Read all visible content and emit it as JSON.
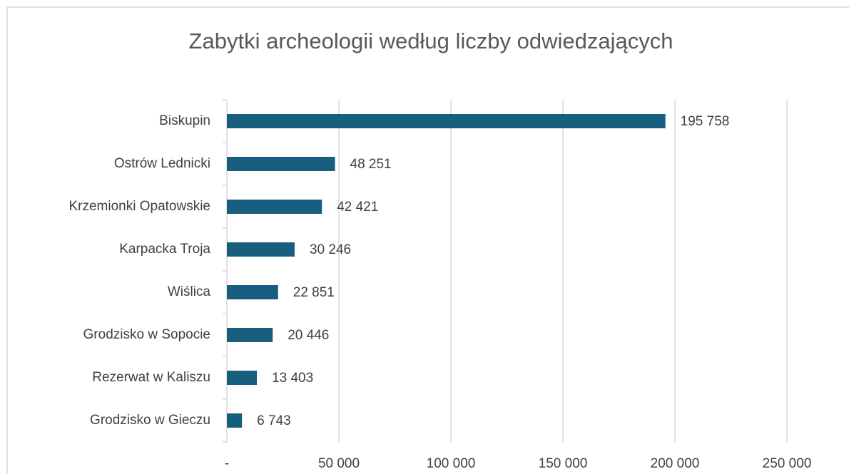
{
  "chart_data": {
    "type": "bar",
    "orientation": "horizontal",
    "title": "Zabytki archeologii według liczby odwiedzających",
    "categories": [
      "Biskupin",
      "Ostrów Lednicki",
      "Krzemionki Opatowskie",
      "Karpacka Troja",
      "Wiślica",
      "Grodzisko w Sopocie",
      "Rezerwat w Kaliszu",
      "Grodzisko w Gieczu"
    ],
    "values": [
      195758,
      48251,
      42421,
      30246,
      22851,
      20446,
      13403,
      6743
    ],
    "value_labels": [
      "195 758",
      "48 251",
      "42 421",
      "30 246",
      "22 851",
      "20 446",
      "13 403",
      "6 743"
    ],
    "color": "#175e7f",
    "xlim": [
      0,
      250000
    ],
    "xticks": [
      {
        "value": 0,
        "label": "-"
      },
      {
        "value": 50000,
        "label": "50 000"
      },
      {
        "value": 100000,
        "label": "100 000"
      },
      {
        "value": 150000,
        "label": "150 000"
      },
      {
        "value": 200000,
        "label": "200 000"
      },
      {
        "value": 250000,
        "label": "250 000"
      }
    ],
    "grid": true
  }
}
